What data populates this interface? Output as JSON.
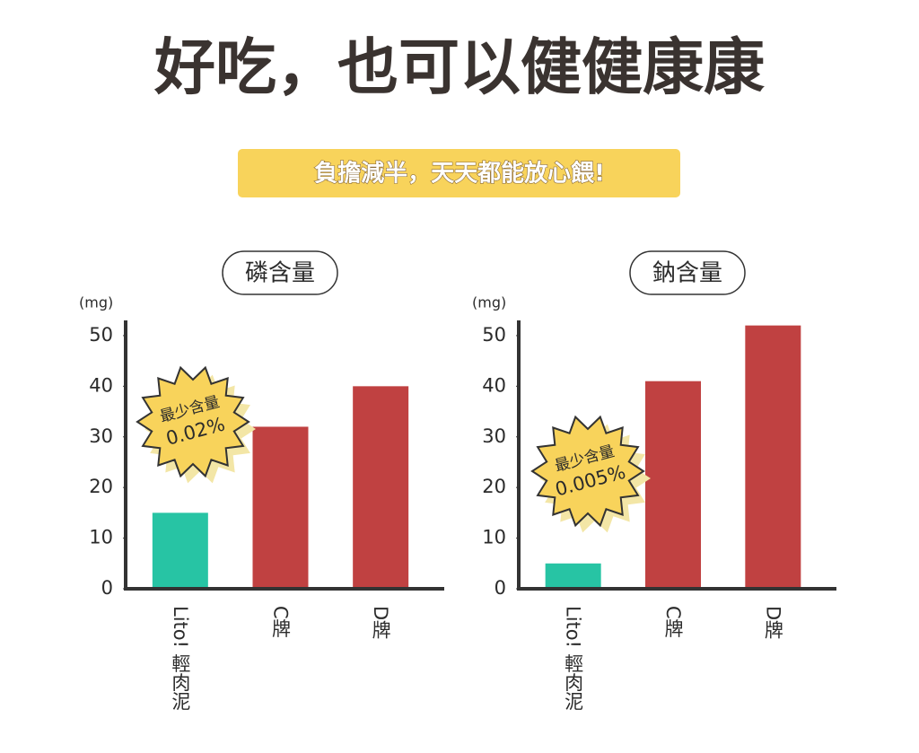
{
  "header": {
    "title": "好吃，也可以健健康康",
    "subtitle": "負擔減半，天天都能放心餵!"
  },
  "chart_data": [
    {
      "type": "bar",
      "title": "磷含量",
      "y_label": "(mg)",
      "categories": [
        "Lito! 輕肉泥",
        "C牌",
        "D牌"
      ],
      "values": [
        15,
        32,
        40
      ],
      "colors": [
        "#27c4a4",
        "#c04141",
        "#c04141"
      ],
      "ylim": [
        0,
        53
      ],
      "yticks": [
        0,
        10,
        20,
        30,
        40,
        50
      ],
      "annotations": [
        "最少含量",
        "0.02%"
      ]
    },
    {
      "type": "bar",
      "title": "鈉含量",
      "y_label": "(mg)",
      "categories": [
        "Lito! 輕肉泥",
        "C牌",
        "D牌"
      ],
      "values": [
        5,
        41,
        52
      ],
      "colors": [
        "#27c4a4",
        "#c04141",
        "#c04141"
      ],
      "ylim": [
        0,
        53
      ],
      "yticks": [
        0,
        10,
        20,
        30,
        40,
        50
      ],
      "annotations": [
        "最少含量",
        "0.005%"
      ]
    }
  ]
}
